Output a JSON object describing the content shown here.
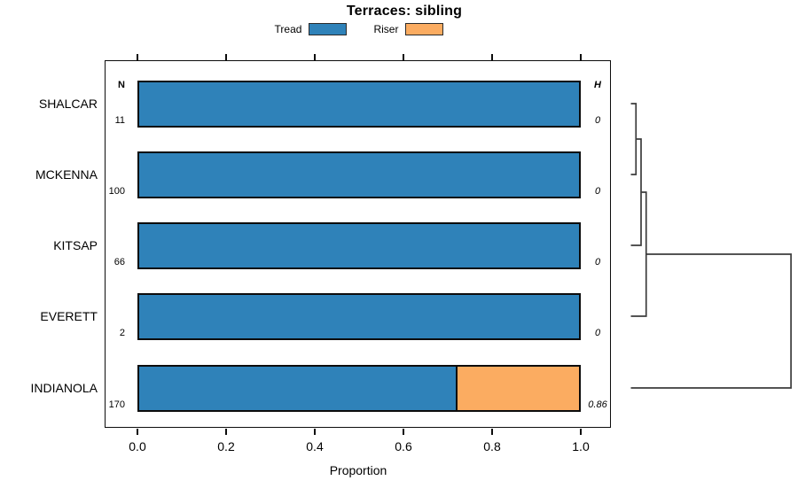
{
  "chart_data": {
    "type": "bar",
    "variant": "horizontal-stacked-proportion-with-dendrogram",
    "title": "Terraces: sibling",
    "xlabel": "Proportion",
    "x_ticks": [
      "0.0",
      "0.2",
      "0.4",
      "0.6",
      "0.8",
      "1.0"
    ],
    "xlim": [
      0,
      1
    ],
    "grid": false,
    "legend_position": "top-center",
    "categories": [
      "SHALCAR",
      "MCKENNA",
      "KITSAP",
      "EVERETT",
      "INDIANOLA"
    ],
    "series": [
      {
        "name": "Tread",
        "color": "#2F82B9",
        "values": [
          1.0,
          1.0,
          1.0,
          1.0,
          0.72
        ]
      },
      {
        "name": "Riser",
        "color": "#FBAC61",
        "values": [
          0.0,
          0.0,
          0.0,
          0.0,
          0.28
        ]
      }
    ],
    "n_column": {
      "label": "N",
      "values": [
        "11",
        "100",
        "66",
        "2",
        "170"
      ]
    },
    "h_column": {
      "label": "H",
      "values": [
        "0",
        "0",
        "0",
        "0",
        "0.86"
      ]
    },
    "dendrogram": {
      "orientation": "right-of-bars",
      "merges": [
        {
          "a": "SHALCAR",
          "b": "MCKENNA",
          "height": 0
        },
        {
          "a": "m0",
          "b": "KITSAP",
          "height": 0
        },
        {
          "a": "m1",
          "b": "EVERETT",
          "height": 0
        },
        {
          "a": "m2",
          "b": "INDIANOLA",
          "height": 0.86
        }
      ]
    },
    "colors": {
      "bar_border": "#0c0c0c",
      "box_border": "#0c0c0c",
      "dendro_line": "#3c3c3c",
      "text": "#000000",
      "background": "#ffffff"
    }
  }
}
